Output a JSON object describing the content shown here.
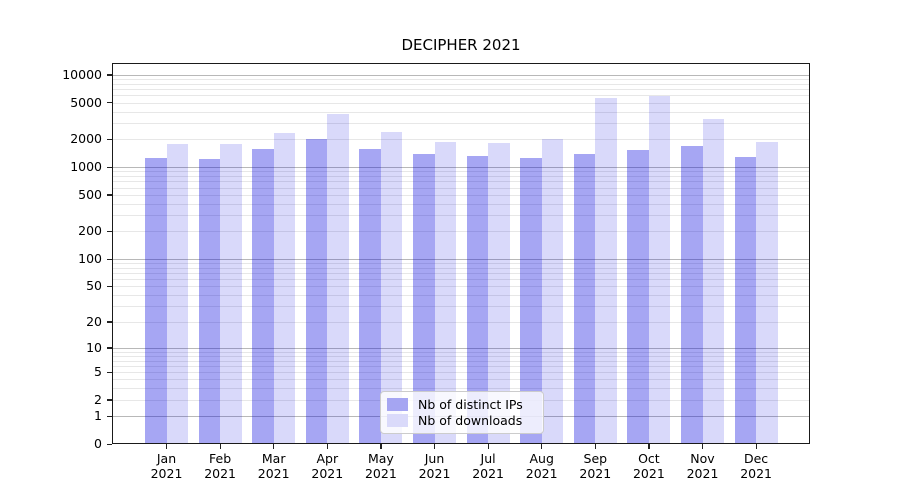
{
  "figure": {
    "background": "#ffffff"
  },
  "chart_data": {
    "type": "bar",
    "title": "DECIPHER 2021",
    "xlabel": "",
    "ylabel": "",
    "yscale": "log(value+1)",
    "ylim": [
      0,
      13400
    ],
    "grid": "on",
    "legend_position": "lower-center",
    "yticks": [
      0,
      1,
      2,
      5,
      10,
      20,
      50,
      100,
      200,
      500,
      1000,
      2000,
      5000,
      10000
    ],
    "categories": [
      "Jan",
      "Feb",
      "Mar",
      "Apr",
      "May",
      "Jun",
      "Jul",
      "Aug",
      "Sep",
      "Oct",
      "Nov",
      "Dec"
    ],
    "category_year": "2021",
    "series": [
      {
        "name": "Nb of distinct IPs",
        "color": "rgba(0,0,220,0.35)",
        "legend_swatch": "#a5a5f2",
        "values": [
          1260,
          1215,
          1580,
          2000,
          1560,
          1375,
          1330,
          1260,
          1375,
          1540,
          1690,
          1300
        ]
      },
      {
        "name": "Nb of downloads",
        "color": "rgba(0,0,220,0.15)",
        "legend_swatch": "#dadafa",
        "values": [
          1770,
          1770,
          2350,
          3760,
          2420,
          1870,
          1810,
          2020,
          5550,
          5890,
          3300,
          1870
        ]
      }
    ],
    "grid_colors": {
      "major": "#b8b8b8",
      "minor": "#e7e7e7"
    },
    "axis_color": "#1a1a1a"
  }
}
